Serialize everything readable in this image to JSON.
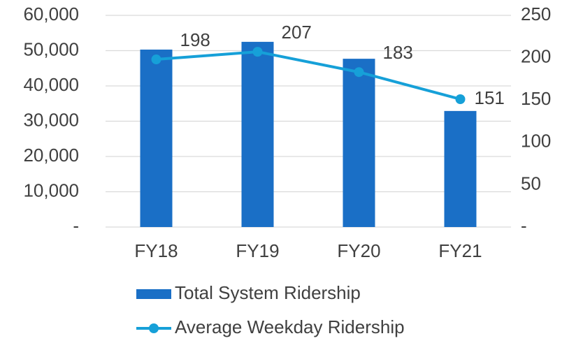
{
  "chart_data": {
    "type": "bar",
    "categories": [
      "FY18",
      "FY19",
      "FY20",
      "FY21"
    ],
    "series": [
      {
        "name": "Total System Ridership",
        "color": "#1a6fc6",
        "values": [
          50300,
          52500,
          47700,
          32900
        ]
      },
      {
        "name": "Average Weekday Ridership",
        "color": "#16a0d8",
        "values": [
          198,
          207,
          183,
          151
        ],
        "axis": "y2",
        "type": "line"
      }
    ],
    "ylim": [
      0,
      60000
    ],
    "yticks": [
      {
        "value": 0,
        "label": "-"
      },
      {
        "value": 10000,
        "label": "10,000"
      },
      {
        "value": 20000,
        "label": "20,000"
      },
      {
        "value": 30000,
        "label": "30,000"
      },
      {
        "value": 40000,
        "label": "40,000"
      },
      {
        "value": 50000,
        "label": "50,000"
      },
      {
        "value": 60000,
        "label": "60,000"
      }
    ],
    "y2lim": [
      0,
      250
    ],
    "y2ticks": [
      {
        "value": 0,
        "label": "-"
      },
      50,
      100,
      150,
      200,
      250
    ],
    "grid": true
  }
}
